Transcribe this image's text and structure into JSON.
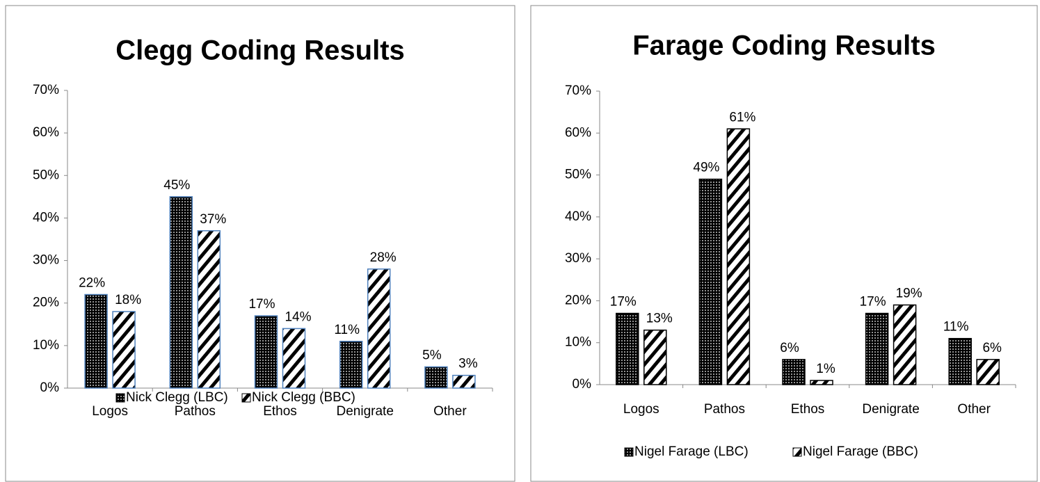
{
  "chart_data": [
    {
      "type": "bar",
      "title": "Clegg Coding Results",
      "categories": [
        "Logos",
        "Pathos",
        "Ethos",
        "Denigrate",
        "Other"
      ],
      "series": [
        {
          "name": "Nick Clegg (LBC)",
          "color": "#000000",
          "pattern": "dots",
          "values": [
            22,
            45,
            17,
            11,
            5
          ],
          "value_labels": [
            "22%",
            "45%",
            "17%",
            "11%",
            "5%"
          ]
        },
        {
          "name": "Nick Clegg (BBC)",
          "color": "#000000",
          "pattern": "stripes",
          "values": [
            18,
            37,
            14,
            28,
            3
          ],
          "value_labels": [
            "18%",
            "37%",
            "14%",
            "28%",
            "3%"
          ]
        }
      ],
      "edgecolor": "#4f81bd",
      "ylim": [
        0,
        70
      ],
      "yticks": [
        {
          "value": 0,
          "label": "0%"
        },
        {
          "value": 10,
          "label": "10%"
        },
        {
          "value": 20,
          "label": "20%"
        },
        {
          "value": 30,
          "label": "30%"
        },
        {
          "value": 40,
          "label": "40%"
        },
        {
          "value": 50,
          "label": "50%"
        },
        {
          "value": 60,
          "label": "60%"
        },
        {
          "value": 70,
          "label": "70%"
        }
      ],
      "legend": "bottom"
    },
    {
      "type": "bar",
      "title": "Farage Coding Results",
      "categories": [
        "Logos",
        "Pathos",
        "Ethos",
        "Denigrate",
        "Other"
      ],
      "series": [
        {
          "name": "Nigel Farage (LBC)",
          "color": "#000000",
          "pattern": "dots",
          "values": [
            17,
            49,
            6,
            17,
            11
          ],
          "value_labels": [
            "17%",
            "49%",
            "6%",
            "17%",
            "11%"
          ]
        },
        {
          "name": "Nigel Farage (BBC)",
          "color": "#000000",
          "pattern": "stripes",
          "values": [
            13,
            61,
            1,
            19,
            6
          ],
          "value_labels": [
            "13%",
            "61%",
            "1%",
            "19%",
            "6%"
          ]
        }
      ],
      "edgecolor": "#000000",
      "ylim": [
        0,
        70
      ],
      "yticks": [
        {
          "value": 0,
          "label": "0%"
        },
        {
          "value": 10,
          "label": "10%"
        },
        {
          "value": 20,
          "label": "20%"
        },
        {
          "value": 30,
          "label": "30%"
        },
        {
          "value": 40,
          "label": "40%"
        },
        {
          "value": 50,
          "label": "50%"
        },
        {
          "value": 60,
          "label": "60%"
        },
        {
          "value": 70,
          "label": "70%"
        }
      ],
      "legend": "bottom"
    }
  ]
}
